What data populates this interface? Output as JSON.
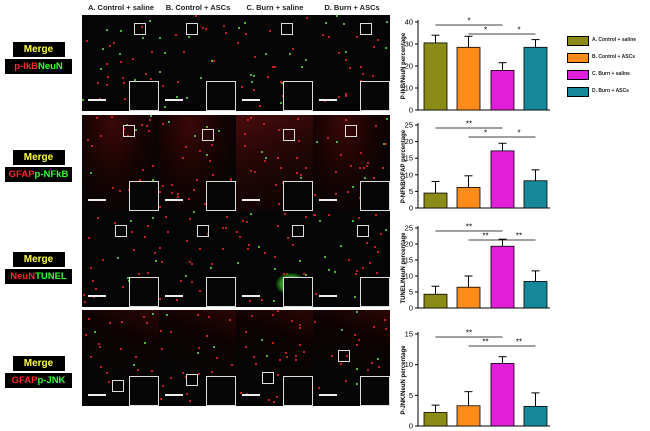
{
  "columns": [
    "A. Control + saline",
    "B. Control + ASCs",
    "C. Burn + saline",
    "D. Burn + ASCs"
  ],
  "merge_label": "Merge",
  "rows": [
    {
      "marker_red": "p-IkB",
      "marker_green": "NeuN"
    },
    {
      "marker_red": "GFAP",
      "marker_green": "p-NFkB"
    },
    {
      "marker_red": "NeuN",
      "marker_green": "TUNEL"
    },
    {
      "marker_red": "GFAP",
      "marker_green": "p-JNK"
    }
  ],
  "legend": [
    {
      "label": "A. Control + saline",
      "color": "#8b8b17"
    },
    {
      "label": "B. Control + ASCs",
      "color": "#ff8c1a"
    },
    {
      "label": "C. Burn + saline",
      "color": "#e21fd8"
    },
    {
      "label": "D. Burn + ASCs",
      "color": "#16889a"
    }
  ],
  "chart_data": [
    {
      "type": "bar",
      "ylabel": "P-IkB/NeuN percentage",
      "categories": [
        "A. Control + saline",
        "B. Control + ASCs",
        "C. Burn + saline",
        "D. Burn + ASCs"
      ],
      "values": [
        30.5,
        28.5,
        18,
        28.5
      ],
      "errors": [
        3.5,
        5,
        3.5,
        3.5
      ],
      "ylim": [
        0,
        40
      ],
      "yticks": [
        0,
        10,
        20,
        30,
        40
      ],
      "significance": [
        {
          "from": 0,
          "to": 2,
          "label": "*"
        },
        {
          "from": 1,
          "to": 2,
          "label": "*"
        },
        {
          "from": 2,
          "to": 3,
          "label": "*"
        }
      ]
    },
    {
      "type": "bar",
      "ylabel": "P-NFkB/GFAP percentage",
      "categories": [
        "A. Control + saline",
        "B. Control + ASCs",
        "C. Burn + saline",
        "D. Burn + ASCs"
      ],
      "values": [
        4.5,
        6.2,
        17.2,
        8.2
      ],
      "errors": [
        3.5,
        3.5,
        2.3,
        3.3
      ],
      "ylim": [
        0,
        25
      ],
      "yticks": [
        0,
        5,
        10,
        15,
        20,
        25
      ],
      "significance": [
        {
          "from": 0,
          "to": 2,
          "label": "**"
        },
        {
          "from": 1,
          "to": 2,
          "label": "*"
        },
        {
          "from": 2,
          "to": 3,
          "label": "*"
        }
      ]
    },
    {
      "type": "bar",
      "ylabel": "TUNEL/NeuN percentage",
      "categories": [
        "A. Control + saline",
        "B. Control + ASCs",
        "C. Burn + saline",
        "D. Burn + ASCs"
      ],
      "values": [
        4.3,
        6.5,
        19.3,
        8.3
      ],
      "errors": [
        2.5,
        3.5,
        2.2,
        3.3
      ],
      "ylim": [
        0,
        25
      ],
      "yticks": [
        0,
        5,
        10,
        15,
        20,
        25
      ],
      "significance": [
        {
          "from": 0,
          "to": 2,
          "label": "**"
        },
        {
          "from": 1,
          "to": 2,
          "label": "**"
        },
        {
          "from": 2,
          "to": 3,
          "label": "**"
        }
      ]
    },
    {
      "type": "bar",
      "ylabel": "P-JNK/NeuN percentage",
      "categories": [
        "A. Control + saline",
        "B. Control + ASCs",
        "C. Burn + saline",
        "D. Burn + ASCs"
      ],
      "values": [
        2.2,
        3.3,
        10.2,
        3.2
      ],
      "errors": [
        1.2,
        2.3,
        1.1,
        2.2
      ],
      "ylim": [
        0,
        15
      ],
      "yticks": [
        0,
        5,
        10,
        15
      ],
      "significance": [
        {
          "from": 0,
          "to": 2,
          "label": "**"
        },
        {
          "from": 1,
          "to": 2,
          "label": "**"
        },
        {
          "from": 2,
          "to": 3,
          "label": "**"
        }
      ]
    }
  ]
}
